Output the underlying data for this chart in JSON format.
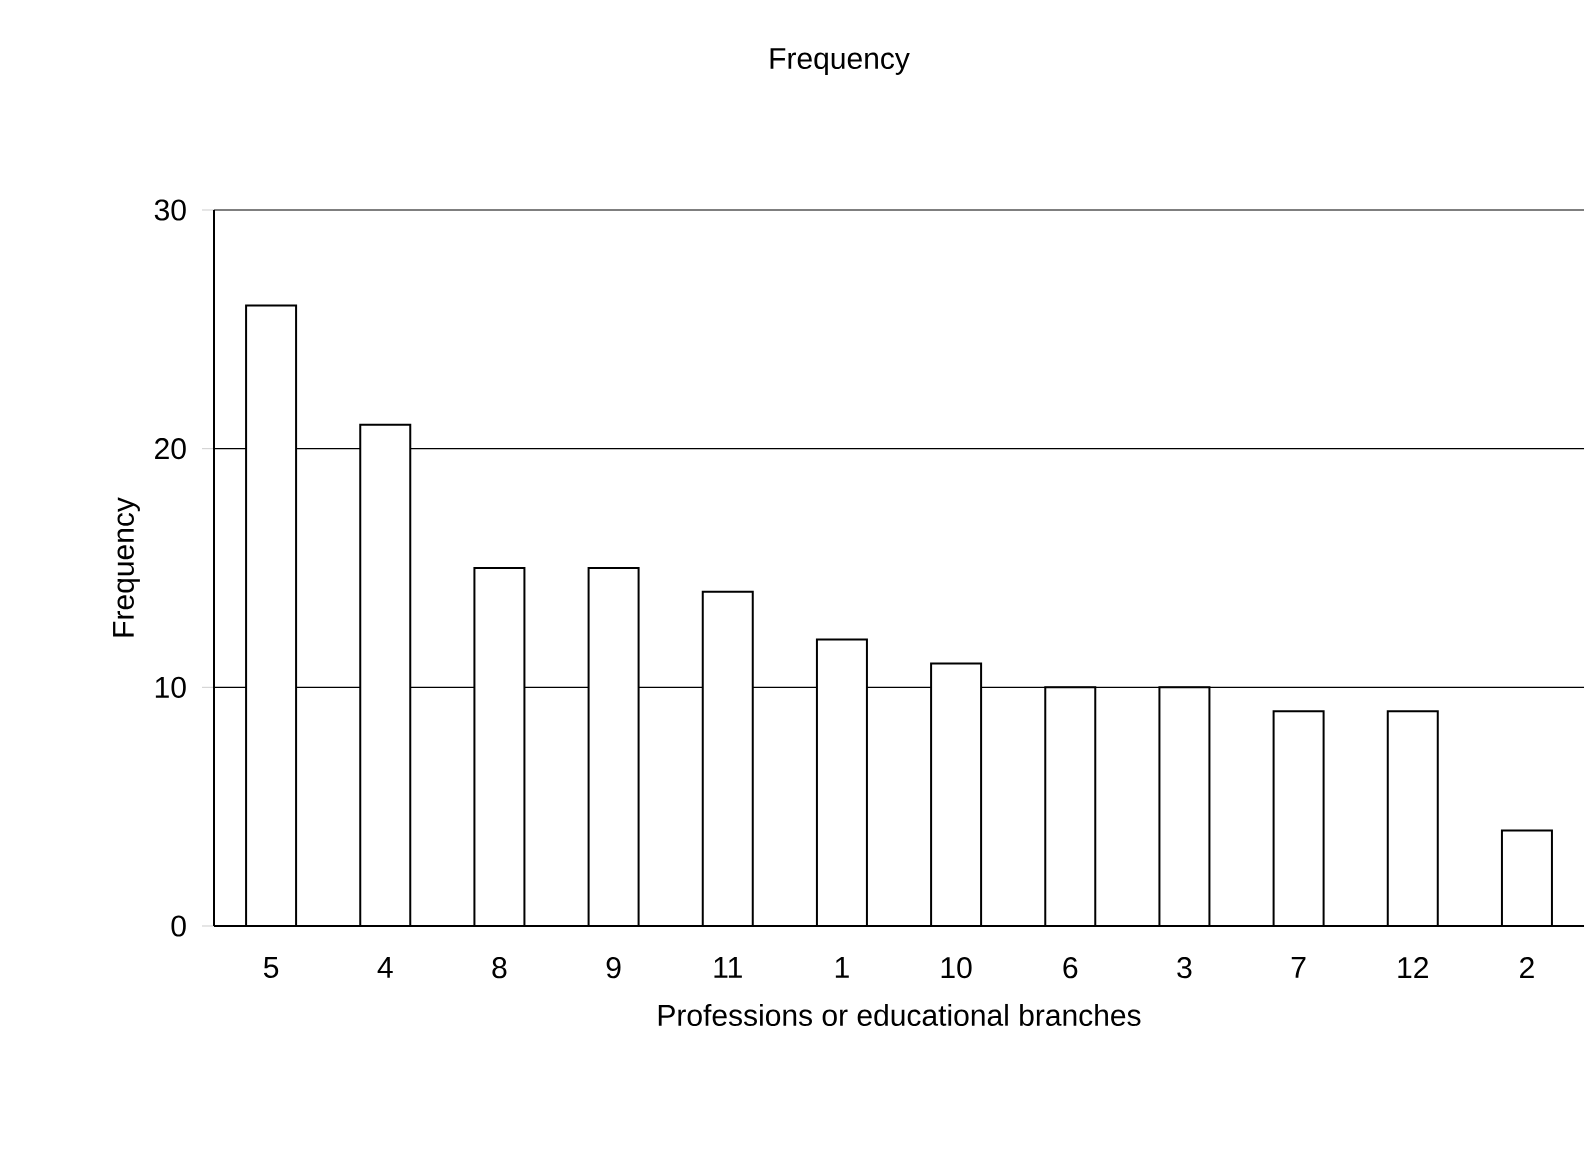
{
  "chart_data": {
    "type": "bar",
    "title": "Frequency",
    "xlabel": "Professions or educational branches",
    "ylabel": "Frequency",
    "categories": [
      "5",
      "4",
      "8",
      "9",
      "11",
      "1",
      "10",
      "6",
      "3",
      "7",
      "12",
      "2"
    ],
    "values": [
      26,
      21,
      15,
      15,
      14,
      12,
      11,
      10,
      10,
      9,
      9,
      4
    ],
    "color": "#ffffff",
    "ylim": [
      0,
      30
    ],
    "yticks": [
      0,
      10,
      20,
      30
    ],
    "grid": "y"
  }
}
